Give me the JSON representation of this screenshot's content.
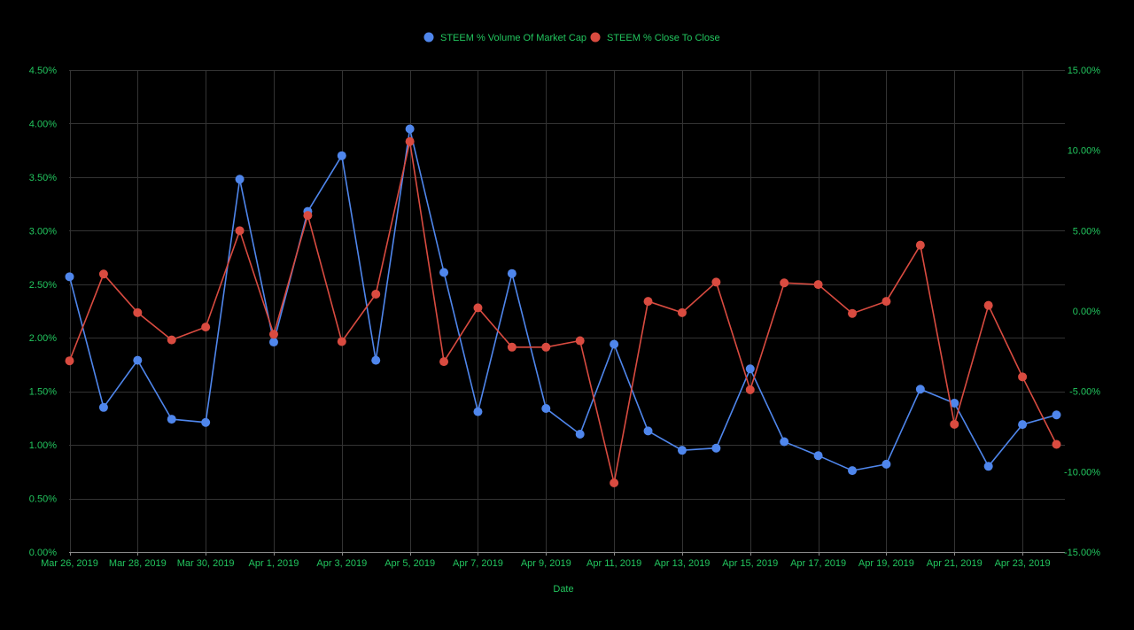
{
  "chart_data": {
    "type": "line",
    "xlabel": "Date",
    "x": [
      "Mar 26, 2019",
      "Mar 27, 2019",
      "Mar 28, 2019",
      "Mar 29, 2019",
      "Mar 30, 2019",
      "Mar 31, 2019",
      "Apr 1, 2019",
      "Apr 2, 2019",
      "Apr 3, 2019",
      "Apr 4, 2019",
      "Apr 5, 2019",
      "Apr 6, 2019",
      "Apr 7, 2019",
      "Apr 8, 2019",
      "Apr 9, 2019",
      "Apr 10, 2019",
      "Apr 11, 2019",
      "Apr 12, 2019",
      "Apr 13, 2019",
      "Apr 14, 2019",
      "Apr 15, 2019",
      "Apr 16, 2019",
      "Apr 17, 2019",
      "Apr 18, 2019",
      "Apr 19, 2019",
      "Apr 20, 2019",
      "Apr 21, 2019",
      "Apr 22, 2019",
      "Apr 23, 2019",
      "Apr 24, 2019"
    ],
    "x_tick_labels": [
      "Mar 26, 2019",
      "Mar 28, 2019",
      "Mar 30, 2019",
      "Apr 1, 2019",
      "Apr 3, 2019",
      "Apr 5, 2019",
      "Apr 7, 2019",
      "Apr 9, 2019",
      "Apr 11, 2019",
      "Apr 13, 2019",
      "Apr 15, 2019",
      "Apr 17, 2019",
      "Apr 19, 2019",
      "Apr 21, 2019",
      "Apr 23, 2019"
    ],
    "y_left": {
      "ylim": [
        0,
        4.5
      ],
      "ticks": [
        "0.00%",
        "0.50%",
        "1.00%",
        "1.50%",
        "2.00%",
        "2.50%",
        "3.00%",
        "3.50%",
        "4.00%",
        "4.50%"
      ]
    },
    "y_right": {
      "ylim": [
        -15,
        15
      ],
      "ticks": [
        "-15.00%",
        "-10.00%",
        "-5.00%",
        "0.00%",
        "5.00%",
        "10.00%",
        "15.00%"
      ]
    },
    "series": [
      {
        "name": "STEEM % Volume Of Market Cap",
        "axis": "left",
        "color": "#4f86ec",
        "values": [
          2.57,
          1.35,
          1.79,
          1.24,
          1.21,
          3.48,
          1.96,
          3.18,
          3.7,
          1.79,
          3.95,
          2.61,
          1.31,
          2.6,
          1.34,
          1.1,
          1.94,
          1.13,
          0.95,
          0.97,
          1.71,
          1.03,
          0.9,
          0.76,
          0.82,
          1.52,
          1.39,
          0.8,
          1.19,
          1.28
        ]
      },
      {
        "name": "STEEM % Close To Close",
        "axis": "right",
        "color": "#d94b40",
        "values": [
          -3.1,
          2.3,
          -0.1,
          -1.8,
          -1.0,
          5.0,
          -1.45,
          5.95,
          -1.9,
          1.05,
          10.55,
          -3.15,
          0.2,
          -2.25,
          -2.25,
          -1.85,
          -10.7,
          0.6,
          -0.1,
          1.8,
          -4.9,
          1.75,
          1.65,
          -0.15,
          0.6,
          4.1,
          -7.05,
          0.35,
          -4.1,
          -8.3
        ]
      }
    ],
    "legend": "top-center",
    "grid": true
  },
  "colors": {
    "background": "#000000",
    "text": "#22c55e",
    "grid": "#333333"
  }
}
